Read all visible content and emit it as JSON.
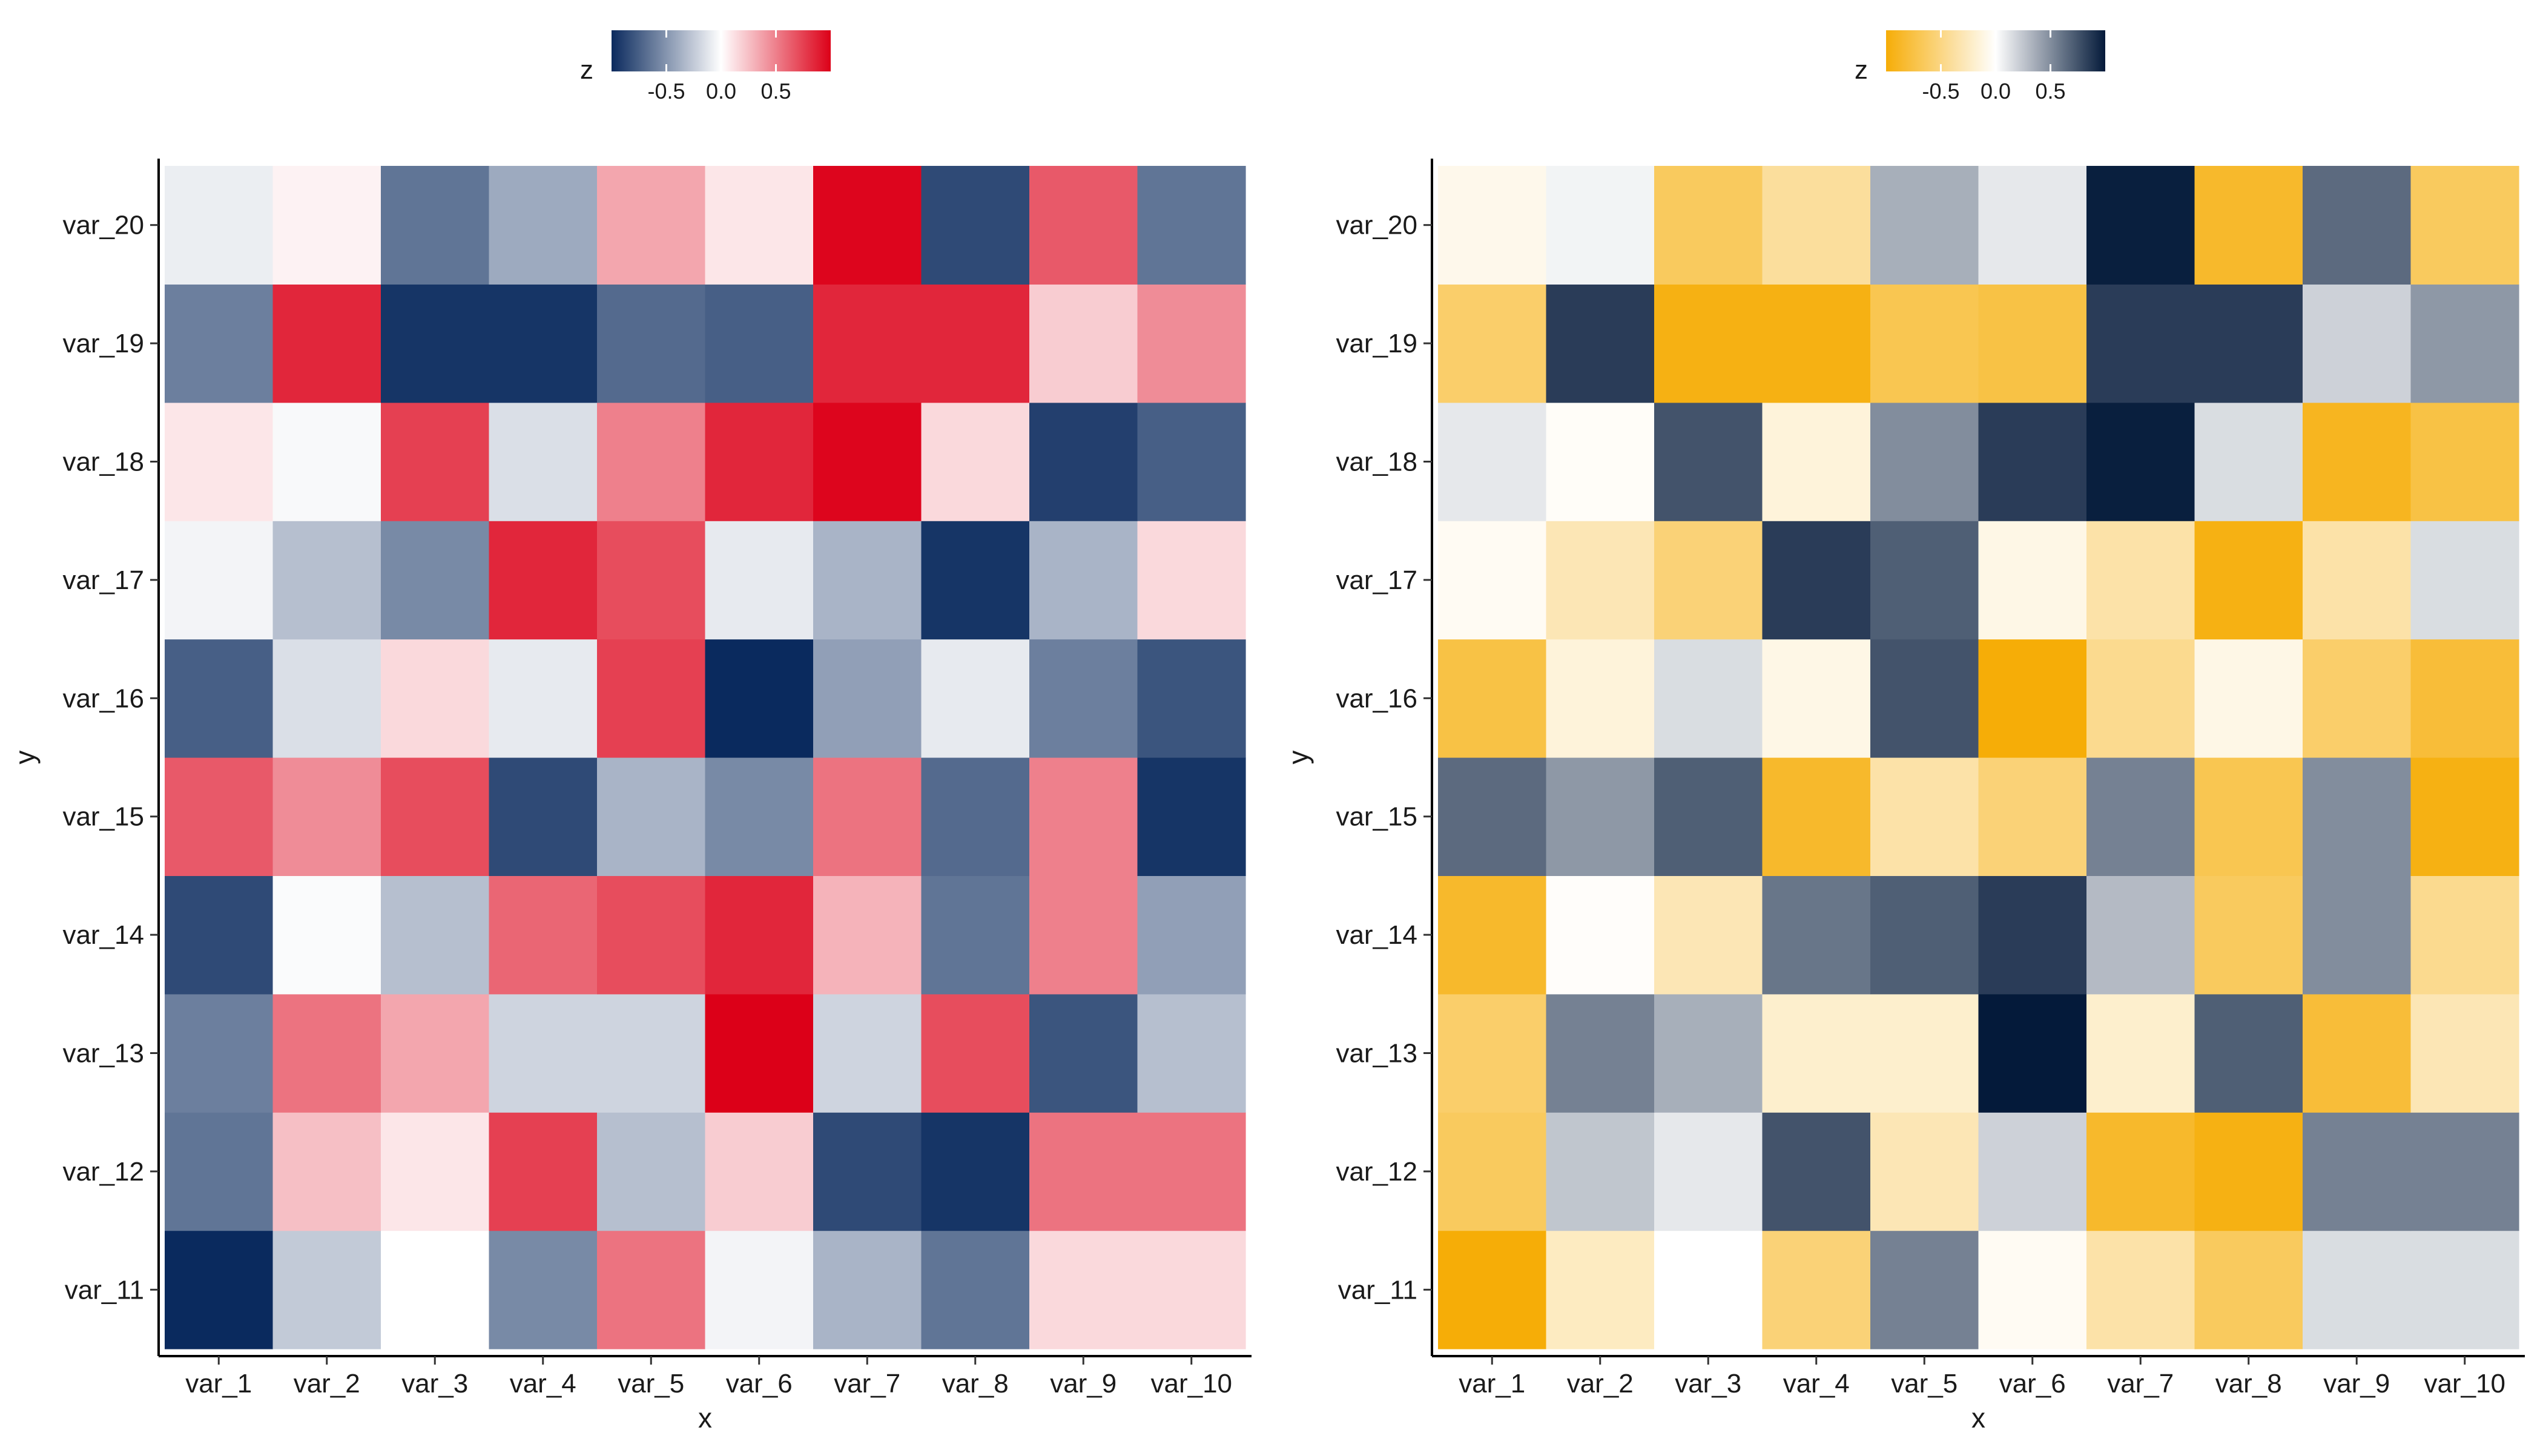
{
  "chart_data": [
    {
      "type": "heatmap",
      "xlabel": "x",
      "ylabel": "y",
      "x": [
        "var_1",
        "var_2",
        "var_3",
        "var_4",
        "var_5",
        "var_6",
        "var_7",
        "var_8",
        "var_9",
        "var_10"
      ],
      "y": [
        "var_11",
        "var_12",
        "var_13",
        "var_14",
        "var_15",
        "var_16",
        "var_17",
        "var_18",
        "var_19",
        "var_20"
      ],
      "legend": {
        "title": "z",
        "ticks": [
          "-0.5",
          "0.0",
          "0.5"
        ],
        "tick_values": [
          -0.5,
          0.0,
          0.5
        ],
        "range": [
          -1.0,
          1.0
        ],
        "position": "top"
      },
      "colors": {
        "low": "#0a2a5e",
        "mid": "#ffffff",
        "high": "#dc0018"
      },
      "grid": false,
      "z": [
        [
          -1.0,
          -0.25,
          0.0,
          -0.55,
          0.55,
          -0.05,
          -0.35,
          -0.65,
          0.15,
          0.15
        ],
        [
          -0.65,
          0.25,
          0.1,
          0.75,
          -0.3,
          0.2,
          -0.85,
          -0.95,
          0.55,
          0.55
        ],
        [
          -0.6,
          0.55,
          0.35,
          -0.2,
          -0.2,
          1.0,
          -0.2,
          0.7,
          -0.8,
          -0.3
        ],
        [
          -0.85,
          -0.02,
          -0.3,
          0.6,
          0.7,
          0.85,
          0.3,
          -0.65,
          0.5,
          -0.45
        ],
        [
          0.65,
          0.45,
          0.7,
          -0.85,
          -0.35,
          -0.55,
          0.55,
          -0.7,
          0.5,
          -0.95
        ],
        [
          -0.75,
          -0.15,
          0.15,
          -0.1,
          0.75,
          -1.0,
          -0.45,
          -0.1,
          -0.6,
          -0.8
        ],
        [
          -0.05,
          -0.3,
          -0.55,
          0.85,
          0.7,
          -0.1,
          -0.35,
          -0.95,
          -0.35,
          0.15
        ],
        [
          0.1,
          -0.03,
          0.75,
          -0.15,
          0.5,
          0.85,
          0.98,
          0.15,
          -0.9,
          -0.75
        ],
        [
          -0.6,
          0.85,
          -0.95,
          -0.95,
          -0.7,
          -0.75,
          0.85,
          0.85,
          0.2,
          0.45
        ],
        [
          -0.08,
          0.05,
          -0.65,
          -0.4,
          0.35,
          0.1,
          0.98,
          -0.85,
          0.65,
          -0.65
        ]
      ]
    },
    {
      "type": "heatmap",
      "xlabel": "x",
      "ylabel": "y",
      "x": [
        "var_1",
        "var_2",
        "var_3",
        "var_4",
        "var_5",
        "var_6",
        "var_7",
        "var_8",
        "var_9",
        "var_10"
      ],
      "y": [
        "var_11",
        "var_12",
        "var_13",
        "var_14",
        "var_15",
        "var_16",
        "var_17",
        "var_18",
        "var_19",
        "var_20"
      ],
      "legend": {
        "title": "z",
        "ticks": [
          "-0.5",
          "0.0",
          "0.5"
        ],
        "tick_values": [
          -0.5,
          0.0,
          0.5
        ],
        "range": [
          -1.0,
          1.0
        ],
        "position": "top"
      },
      "colors": {
        "low": "#f6ad07",
        "mid": "#ffffff",
        "high": "#041a3a"
      },
      "grid": false,
      "z": [
        [
          -1.0,
          -0.25,
          0.0,
          -0.55,
          0.55,
          -0.05,
          -0.35,
          -0.65,
          0.15,
          0.15
        ],
        [
          -0.65,
          0.25,
          0.1,
          0.75,
          -0.3,
          0.2,
          -0.85,
          -0.95,
          0.55,
          0.55
        ],
        [
          -0.6,
          0.55,
          0.35,
          -0.2,
          -0.2,
          1.0,
          -0.2,
          0.7,
          -0.8,
          -0.3
        ],
        [
          -0.85,
          -0.02,
          -0.3,
          0.6,
          0.7,
          0.85,
          0.3,
          -0.65,
          0.5,
          -0.45
        ],
        [
          0.65,
          0.45,
          0.7,
          -0.85,
          -0.35,
          -0.55,
          0.55,
          -0.7,
          0.5,
          -0.95
        ],
        [
          -0.75,
          -0.15,
          0.15,
          -0.1,
          0.75,
          -1.0,
          -0.45,
          -0.1,
          -0.6,
          -0.8
        ],
        [
          -0.05,
          -0.3,
          -0.55,
          0.85,
          0.7,
          -0.1,
          -0.35,
          -0.95,
          -0.35,
          0.15
        ],
        [
          0.1,
          -0.03,
          0.75,
          -0.15,
          0.5,
          0.85,
          0.98,
          0.15,
          -0.9,
          -0.75
        ],
        [
          -0.6,
          0.85,
          -0.95,
          -0.95,
          -0.7,
          -0.75,
          0.85,
          0.85,
          0.2,
          0.45
        ],
        [
          -0.08,
          0.05,
          -0.65,
          -0.4,
          0.35,
          0.1,
          0.98,
          -0.85,
          0.65,
          -0.65
        ]
      ]
    }
  ]
}
